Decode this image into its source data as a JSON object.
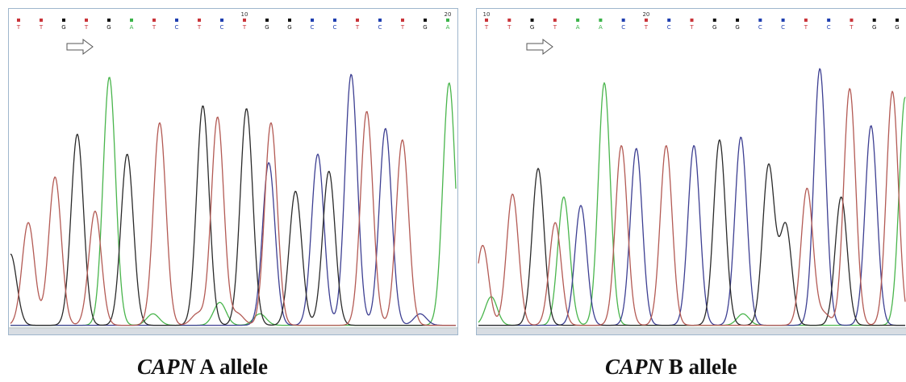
{
  "colors": {
    "A": "#3cb34a",
    "C": "#1f3fb0",
    "G": "#111111",
    "T": "#c9343a",
    "trace_A": "#49b54c",
    "trace_C": "#3d3f92",
    "trace_G": "#2a2a2a",
    "trace_T": "#b35a54",
    "frame": "#9fb6cc"
  },
  "icons": {
    "direction": "right-arrow-icon"
  },
  "chart_data": [
    {
      "type": "line",
      "subtype": "dna-sequencing-chromatogram",
      "caption": {
        "gene": "CAPN",
        "allele": "A allele"
      },
      "position_labels": [
        {
          "index": 10,
          "label": "10"
        },
        {
          "index": 19,
          "label": "20"
        }
      ],
      "bases": [
        "T",
        "T",
        "G",
        "T",
        "G",
        "A",
        "T",
        "C",
        "T",
        "C",
        "T",
        "G",
        "G",
        "C",
        "C",
        "T",
        "C",
        "T",
        "G",
        "A"
      ],
      "series": [
        {
          "name": "A",
          "peaks": [
            [
              0.32,
              0.04
            ],
            [
              0.222,
              0.87
            ],
            [
              0.47,
              0.08
            ],
            [
              0.985,
              0.85
            ],
            [
              0.56,
              0.04
            ]
          ]
        },
        {
          "name": "C",
          "peaks": [
            [
              0.58,
              0.57
            ],
            [
              0.69,
              0.6
            ],
            [
              0.765,
              0.88
            ],
            [
              0.842,
              0.69
            ],
            [
              0.92,
              0.04
            ]
          ]
        },
        {
          "name": "G",
          "peaks": [
            [
              0.0,
              0.25
            ],
            [
              0.15,
              0.67
            ],
            [
              0.262,
              0.6
            ],
            [
              0.432,
              0.77
            ],
            [
              0.53,
              0.76
            ],
            [
              0.64,
              0.47
            ],
            [
              0.715,
              0.54
            ]
          ]
        },
        {
          "name": "T",
          "peaks": [
            [
              0.04,
              0.36
            ],
            [
              0.1,
              0.52
            ],
            [
              0.19,
              0.4
            ],
            [
              0.335,
              0.71
            ],
            [
              0.42,
              0.04
            ],
            [
              0.465,
              0.73
            ],
            [
              0.51,
              0.04
            ],
            [
              0.585,
              0.71
            ],
            [
              0.8,
              0.75
            ],
            [
              0.88,
              0.65
            ]
          ]
        }
      ]
    },
    {
      "type": "line",
      "subtype": "dna-sequencing-chromatogram",
      "caption": {
        "gene": "CAPN",
        "allele": "B allele"
      },
      "position_labels": [
        {
          "index": 0,
          "label": "10"
        },
        {
          "index": 7,
          "label": "20"
        }
      ],
      "bases": [
        "T",
        "T",
        "G",
        "T",
        "A",
        "A",
        "C",
        "T",
        "C",
        "T",
        "G",
        "G",
        "C",
        "C",
        "T",
        "C",
        "T",
        "G",
        "G"
      ],
      "series": [
        {
          "name": "A",
          "peaks": [
            [
              0.03,
              0.1
            ],
            [
              0.2,
              0.45
            ],
            [
              0.295,
              0.85
            ],
            [
              0.62,
              0.04
            ],
            [
              1.0,
              0.8
            ]
          ]
        },
        {
          "name": "C",
          "peaks": [
            [
              0.24,
              0.42
            ],
            [
              0.37,
              0.62
            ],
            [
              0.505,
              0.63
            ],
            [
              0.615,
              0.66
            ],
            [
              0.8,
              0.9
            ],
            [
              0.92,
              0.7
            ]
          ]
        },
        {
          "name": "G",
          "peaks": [
            [
              0.14,
              0.55
            ],
            [
              0.565,
              0.65
            ],
            [
              0.68,
              0.56
            ],
            [
              0.72,
              0.35
            ],
            [
              0.85,
              0.45
            ]
          ]
        },
        {
          "name": "T",
          "peaks": [
            [
              0.01,
              0.28
            ],
            [
              0.08,
              0.46
            ],
            [
              0.18,
              0.36
            ],
            [
              0.335,
              0.63
            ],
            [
              0.44,
              0.63
            ],
            [
              0.77,
              0.48
            ],
            [
              0.81,
              0.04
            ],
            [
              0.87,
              0.83
            ],
            [
              0.97,
              0.82
            ]
          ]
        }
      ]
    }
  ]
}
